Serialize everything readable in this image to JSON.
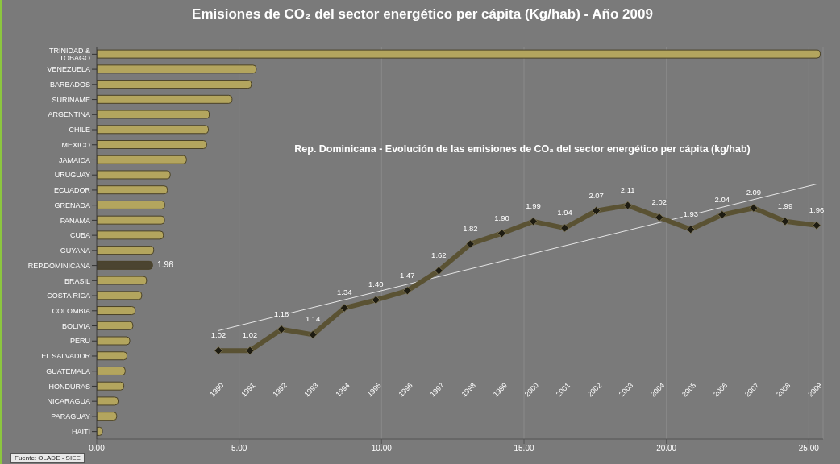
{
  "chart_data": [
    {
      "type": "bar",
      "orientation": "horizontal",
      "title": "Emisiones de CO₂ del sector energético per cápita (Kg/hab) - Año 2009",
      "categories": [
        "TRINIDAD & TOBAGO",
        "VENEZUELA",
        "BARBADOS",
        "SURINAME",
        "ARGENTINA",
        "CHILE",
        "MEXICO",
        "JAMAICA",
        "URUGUAY",
        "ECUADOR",
        "GRENADA",
        "PANAMA",
        "CUBA",
        "GUYANA",
        "REP.DOMINICANA",
        "BRASIL",
        "COSTA RICA",
        "COLOMBIA",
        "BOLIVIA",
        "PERU",
        "EL SALVADOR",
        "GUATEMALA",
        "HONDURAS",
        "NICARAGUA",
        "PARAGUAY",
        "HAITI"
      ],
      "values": [
        25.4,
        5.6,
        5.43,
        4.75,
        3.95,
        3.92,
        3.86,
        3.15,
        2.58,
        2.48,
        2.39,
        2.38,
        2.34,
        2.0,
        1.96,
        1.75,
        1.58,
        1.35,
        1.27,
        1.16,
        1.06,
        1.0,
        0.95,
        0.75,
        0.7,
        0.2
      ],
      "colors": [
        "#b3a55e",
        "#b3a55e",
        "#b3a55e",
        "#b3a55e",
        "#b3a55e",
        "#b3a55e",
        "#b3a55e",
        "#b3a55e",
        "#b3a55e",
        "#b3a55e",
        "#b3a55e",
        "#b3a55e",
        "#b3a55e",
        "#b3a55e",
        "#4b4430",
        "#b3a55e",
        "#b3a55e",
        "#b3a55e",
        "#b3a55e",
        "#b3a55e",
        "#b3a55e",
        "#b3a55e",
        "#b3a55e",
        "#b3a55e",
        "#b3a55e",
        "#b3a55e"
      ],
      "value_labels": [
        null,
        null,
        null,
        null,
        null,
        null,
        null,
        null,
        null,
        null,
        null,
        null,
        null,
        null,
        "1.96",
        null,
        null,
        null,
        null,
        null,
        null,
        null,
        null,
        null,
        null,
        null
      ],
      "xlim": [
        0,
        25.5
      ],
      "xticks": [
        {
          "value": 0,
          "label": "0.00"
        },
        {
          "value": 5,
          "label": "5.00"
        },
        {
          "value": 10,
          "label": "10.00"
        },
        {
          "value": 15,
          "label": "15.00"
        },
        {
          "value": 20,
          "label": "20.00"
        },
        {
          "value": 25,
          "label": "25.00"
        }
      ],
      "grid": "x",
      "legend": false,
      "annotations": [
        "Fuente: OLADE - SIEE"
      ]
    },
    {
      "type": "line",
      "title": "Rep. Dominicana - Evolución de las emisiones de CO₂ del sector energético per cápita (kg/hab)",
      "categories": [
        "1990",
        "1991",
        "1992",
        "1993",
        "1994",
        "1995",
        "1996",
        "1997",
        "1998",
        "1999",
        "2000",
        "2001",
        "2002",
        "2003",
        "2004",
        "2005",
        "2006",
        "2007",
        "2008",
        "2009"
      ],
      "series": [
        {
          "color": "#5a5233",
          "values": [
            1.02,
            1.02,
            1.18,
            1.14,
            1.34,
            1.4,
            1.47,
            1.62,
            1.82,
            1.9,
            1.99,
            1.94,
            2.07,
            2.11,
            2.02,
            1.93,
            2.04,
            2.09,
            1.99,
            1.96
          ],
          "value_labels": [
            "1.02",
            "1.02",
            "1.18",
            "1.14",
            "1.34",
            "1.40",
            "1.47",
            "1.62",
            "1.82",
            "1.90",
            "1.99",
            "1.94",
            "2.07",
            "2.11",
            "2.02",
            "1.93",
            "2.04",
            "2.09",
            "1.99",
            "1.96"
          ],
          "marker": "diamond"
        },
        {
          "type": "line",
          "color": "#e6e6e6",
          "values": [
            1.17,
            null,
            null,
            null,
            null,
            null,
            null,
            null,
            null,
            null,
            null,
            null,
            null,
            null,
            null,
            null,
            null,
            null,
            null,
            2.27
          ],
          "marker": "none"
        }
      ],
      "legend": false,
      "grid": false
    }
  ]
}
